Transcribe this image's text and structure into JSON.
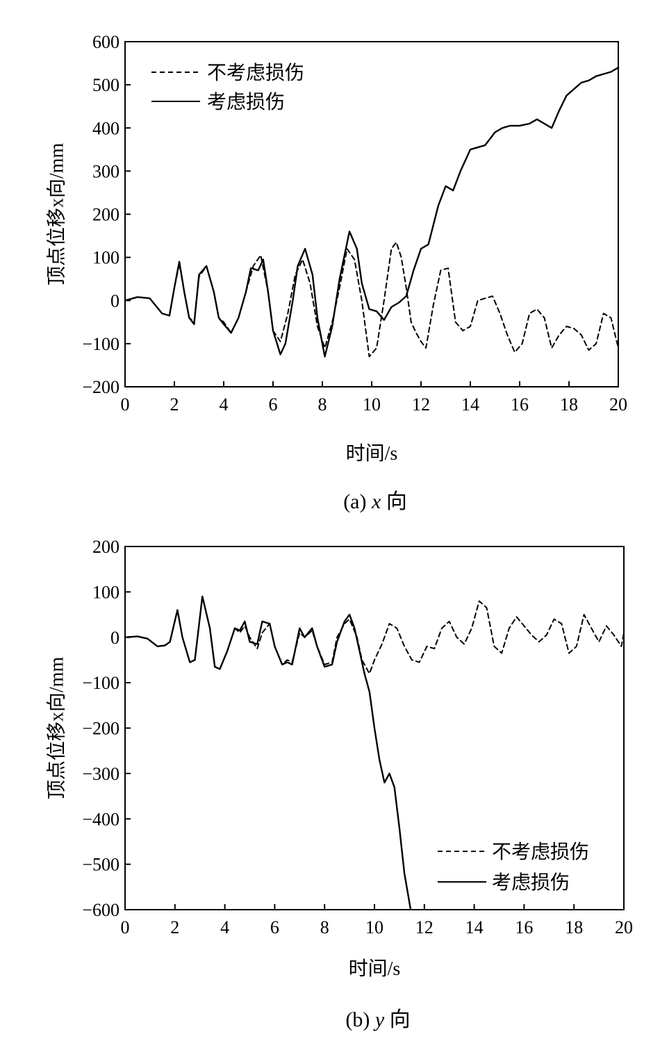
{
  "chart_data": [
    {
      "type": "line",
      "caption_prefix": "(a) ",
      "caption_var": "x",
      "caption_suffix": " 向",
      "xlabel": "时间/s",
      "ylabel": "顶点位移x向/mm",
      "xlim": [
        0,
        20
      ],
      "ylim": [
        -200,
        600
      ],
      "xticks": [
        0,
        2,
        4,
        6,
        8,
        10,
        12,
        14,
        16,
        18,
        20
      ],
      "yticks": [
        -200,
        -100,
        0,
        100,
        200,
        300,
        400,
        500,
        600
      ],
      "legend_position": "top-left",
      "series": [
        {
          "name": "不考虑损伤",
          "style": "dashed",
          "x": [
            0,
            0.5,
            1.0,
            1.5,
            1.8,
            2.0,
            2.2,
            2.4,
            2.6,
            2.8,
            3.0,
            3.3,
            3.6,
            3.8,
            4.0,
            4.3,
            4.6,
            4.9,
            5.2,
            5.5,
            5.8,
            6.0,
            6.3,
            6.6,
            6.9,
            7.2,
            7.5,
            7.8,
            8.1,
            8.4,
            8.7,
            9.0,
            9.3,
            9.6,
            9.9,
            10.2,
            10.5,
            10.8,
            11.0,
            11.2,
            11.4,
            11.6,
            11.8,
            12.0,
            12.2,
            12.5,
            12.8,
            13.1,
            13.4,
            13.7,
            14.0,
            14.3,
            14.6,
            14.9,
            15.2,
            15.5,
            15.8,
            16.1,
            16.4,
            16.7,
            17.0,
            17.3,
            17.6,
            17.9,
            18.2,
            18.5,
            18.8,
            19.1,
            19.4,
            19.7,
            20.0
          ],
          "y": [
            0,
            8,
            5,
            -30,
            -35,
            30,
            85,
            20,
            -40,
            -50,
            55,
            80,
            20,
            -40,
            -50,
            -75,
            -40,
            20,
            80,
            105,
            20,
            -70,
            -95,
            -30,
            60,
            95,
            40,
            -60,
            -110,
            -50,
            30,
            120,
            95,
            0,
            -130,
            -110,
            0,
            120,
            135,
            100,
            30,
            -50,
            -75,
            -95,
            -110,
            -10,
            70,
            75,
            -50,
            -70,
            -60,
            0,
            5,
            10,
            -30,
            -80,
            -120,
            -100,
            -30,
            -20,
            -40,
            -110,
            -80,
            -60,
            -65,
            -80,
            -115,
            -100,
            -30,
            -40,
            -110
          ]
        },
        {
          "name": "考虑损伤",
          "style": "solid",
          "x": [
            0,
            0.5,
            1.0,
            1.5,
            1.8,
            2.0,
            2.2,
            2.4,
            2.6,
            2.8,
            3.0,
            3.3,
            3.6,
            3.8,
            4.0,
            4.3,
            4.6,
            4.9,
            5.1,
            5.4,
            5.6,
            5.8,
            6.0,
            6.3,
            6.5,
            6.8,
            7.0,
            7.3,
            7.6,
            7.8,
            8.1,
            8.4,
            8.7,
            9.1,
            9.4,
            9.6,
            9.9,
            10.2,
            10.5,
            10.8,
            11.1,
            11.4,
            11.7,
            12.0,
            12.3,
            12.7,
            13.0,
            13.3,
            13.6,
            14.0,
            14.3,
            14.6,
            15.0,
            15.3,
            15.6,
            16.0,
            16.4,
            16.7,
            17.0,
            17.3,
            17.6,
            17.9,
            18.2,
            18.5,
            18.8,
            19.1,
            19.4,
            19.7,
            20.0
          ],
          "y": [
            0,
            8,
            5,
            -30,
            -35,
            30,
            90,
            20,
            -40,
            -55,
            60,
            80,
            20,
            -40,
            -55,
            -75,
            -40,
            20,
            75,
            70,
            95,
            20,
            -70,
            -125,
            -100,
            0,
            80,
            120,
            60,
            -40,
            -130,
            -60,
            50,
            160,
            120,
            40,
            -20,
            -25,
            -45,
            -15,
            -5,
            10,
            70,
            120,
            130,
            220,
            265,
            255,
            300,
            350,
            355,
            360,
            390,
            400,
            405,
            405,
            410,
            420,
            410,
            400,
            440,
            475,
            490,
            505,
            510,
            520,
            525,
            530,
            540
          ]
        }
      ]
    },
    {
      "type": "line",
      "caption_prefix": "(b) ",
      "caption_var": "y",
      "caption_suffix": " 向",
      "xlabel": "时间/s",
      "ylabel": "顶点位移x向/mm",
      "xlim": [
        0,
        20
      ],
      "ylim": [
        -600,
        200
      ],
      "xticks": [
        0,
        2,
        4,
        6,
        8,
        10,
        12,
        14,
        16,
        18,
        20
      ],
      "yticks": [
        -600,
        -500,
        -400,
        -300,
        -200,
        -100,
        0,
        100,
        200
      ],
      "legend_position": "bottom-right",
      "series": [
        {
          "name": "不考虑损伤",
          "style": "dashed",
          "x": [
            0,
            0.5,
            0.9,
            1.3,
            1.6,
            1.8,
            2.1,
            2.3,
            2.6,
            2.8,
            3.1,
            3.4,
            3.6,
            3.8,
            4.1,
            4.4,
            4.6,
            4.8,
            5.0,
            5.3,
            5.5,
            5.8,
            6.0,
            6.3,
            6.5,
            6.7,
            7.0,
            7.2,
            7.5,
            7.7,
            8.0,
            8.3,
            8.5,
            8.8,
            9.0,
            9.3,
            9.5,
            9.8,
            10.0,
            10.3,
            10.6,
            10.9,
            11.2,
            11.5,
            11.8,
            12.1,
            12.4,
            12.7,
            13.0,
            13.3,
            13.6,
            13.9,
            14.2,
            14.5,
            14.8,
            15.1,
            15.4,
            15.7,
            16.0,
            16.3,
            16.6,
            16.9,
            17.2,
            17.5,
            17.8,
            18.1,
            18.4,
            18.7,
            19.0,
            19.3,
            19.6,
            19.9,
            20.0
          ],
          "y": [
            0,
            2,
            -3,
            -20,
            -18,
            -10,
            60,
            0,
            -55,
            -50,
            90,
            20,
            -65,
            -70,
            -30,
            20,
            10,
            25,
            0,
            -25,
            10,
            30,
            -20,
            -60,
            -50,
            -55,
            10,
            0,
            15,
            -20,
            -60,
            -55,
            0,
            30,
            40,
            0,
            -50,
            -80,
            -50,
            -15,
            30,
            20,
            -20,
            -50,
            -55,
            -20,
            -25,
            20,
            35,
            0,
            -15,
            20,
            80,
            65,
            -20,
            -35,
            20,
            45,
            25,
            5,
            -10,
            5,
            40,
            30,
            -35,
            -20,
            50,
            20,
            -10,
            25,
            5,
            -20,
            10
          ]
        },
        {
          "name": "考虑损伤",
          "style": "solid",
          "x": [
            0,
            0.5,
            0.9,
            1.3,
            1.6,
            1.8,
            2.1,
            2.3,
            2.6,
            2.8,
            3.1,
            3.4,
            3.6,
            3.8,
            4.1,
            4.4,
            4.6,
            4.8,
            5.0,
            5.3,
            5.5,
            5.8,
            6.0,
            6.3,
            6.5,
            6.7,
            7.0,
            7.2,
            7.5,
            7.7,
            8.0,
            8.3,
            8.5,
            8.8,
            9.0,
            9.2,
            9.4,
            9.6,
            9.8,
            10.0,
            10.2,
            10.4,
            10.6,
            10.8,
            11.0,
            11.2,
            11.45
          ],
          "y": [
            0,
            2,
            -3,
            -20,
            -18,
            -10,
            60,
            0,
            -55,
            -50,
            90,
            20,
            -65,
            -70,
            -30,
            20,
            15,
            35,
            -10,
            -15,
            35,
            30,
            -20,
            -60,
            -55,
            -60,
            20,
            0,
            20,
            -20,
            -65,
            -60,
            -10,
            35,
            50,
            20,
            -30,
            -80,
            -120,
            -200,
            -270,
            -320,
            -300,
            -330,
            -420,
            -520,
            -600
          ]
        }
      ]
    }
  ]
}
